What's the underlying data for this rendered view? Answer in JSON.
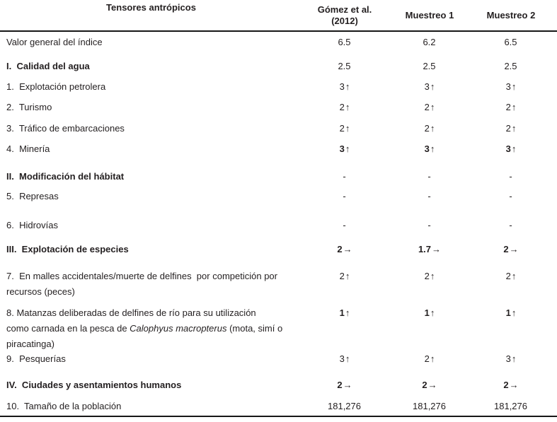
{
  "page": {
    "background": "#ffffff",
    "text_color": "#231f20",
    "rule_color": "#161616"
  },
  "chart_data": {
    "type": "table",
    "title": "Tensores antrópicos",
    "columns": [
      "Tensores antrópicos",
      "Gómez et al. (2012)",
      "Muestreo 1",
      "Muestreo 2"
    ],
    "rows": [
      {
        "label": "Valor general del índice",
        "values": [
          "6.5",
          "6.2",
          "6.5"
        ]
      },
      {
        "label": "I. Calidad del agua",
        "values": [
          "2.5",
          "2.5",
          "2.5"
        ]
      },
      {
        "label": "1. Explotación petrolera",
        "values": [
          "3↑",
          "3↑",
          "3↑"
        ]
      },
      {
        "label": "2. Turismo",
        "values": [
          "2↑",
          "2↑",
          "2↑"
        ]
      },
      {
        "label": "3. Tráfico de embarcaciones",
        "values": [
          "2↑",
          "2↑",
          "2↑"
        ]
      },
      {
        "label": "4. Minería",
        "values": [
          "3↑",
          "3↑",
          "3↑"
        ]
      },
      {
        "label": "II. Modificación del hábitat",
        "values": [
          "-",
          "-",
          "-"
        ]
      },
      {
        "label": "5. Represas",
        "values": [
          "-",
          "-",
          "-"
        ]
      },
      {
        "label": "6. Hidrovías",
        "values": [
          "-",
          "-",
          "-"
        ]
      },
      {
        "label": "III. Explotación de especies",
        "values": [
          "2→",
          "1.7→",
          "2→"
        ]
      },
      {
        "label": "7. En malles accidentales/muerte de delfines por competición por recursos (peces)",
        "values": [
          "2↑",
          "2↑",
          "2↑"
        ]
      },
      {
        "label": "8. Matanzas deliberadas de delfines de río para su utilización como carnada en la pesca de Calophyus macropterus (mota, simí o piracatinga)",
        "values": [
          "1↑",
          "1↑",
          "1↑"
        ]
      },
      {
        "label": "9. Pesquerías",
        "values": [
          "3↑",
          "2↑",
          "3↑"
        ]
      },
      {
        "label": "IV. Ciudades y asentamientos humanos",
        "values": [
          "2→",
          "2→",
          "2→"
        ]
      },
      {
        "label": "10. Tamaño de la población",
        "values": [
          "181,276",
          "181,276",
          "181,276"
        ]
      }
    ]
  },
  "table": {
    "header": {
      "col0": "Tensores antrópicos",
      "col1_line1": "Gómez et al.",
      "col1_line2": "(2012)",
      "col2": "Muestreo 1",
      "col3": "Muestreo 2"
    },
    "rows": [
      {
        "label": "Valor general del índice",
        "values": [
          {
            "n": "6.5",
            "a": ""
          },
          {
            "n": "6.2",
            "a": ""
          },
          {
            "n": "6.5",
            "a": ""
          }
        ]
      },
      {
        "label": "I.  Calidad del agua",
        "values": [
          {
            "n": "2.5",
            "a": ""
          },
          {
            "n": "2.5",
            "a": ""
          },
          {
            "n": "2.5",
            "a": ""
          }
        ]
      },
      {
        "label": "1.  Explotación petrolera",
        "values": [
          {
            "n": "3",
            "a": "↑"
          },
          {
            "n": "3",
            "a": "↑"
          },
          {
            "n": "3",
            "a": "↑"
          }
        ]
      },
      {
        "label": "2.  Turismo",
        "values": [
          {
            "n": "2",
            "a": "↑"
          },
          {
            "n": "2",
            "a": "↑"
          },
          {
            "n": "2",
            "a": "↑"
          }
        ]
      },
      {
        "label": "3.  Tráfico de embarcaciones",
        "values": [
          {
            "n": "2",
            "a": "↑"
          },
          {
            "n": "2",
            "a": "↑"
          },
          {
            "n": "2",
            "a": "↑"
          }
        ]
      },
      {
        "label": "4.  Minería",
        "values": [
          {
            "n": "3",
            "a": "↑"
          },
          {
            "n": "3",
            "a": "↑"
          },
          {
            "n": "3",
            "a": "↑"
          }
        ]
      },
      {
        "label": "II.  Modificación del hábitat",
        "values": [
          {
            "n": "-",
            "a": ""
          },
          {
            "n": "-",
            "a": ""
          },
          {
            "n": "-",
            "a": ""
          }
        ]
      },
      {
        "label": "5.  Represas",
        "values": [
          {
            "n": "-",
            "a": ""
          },
          {
            "n": "-",
            "a": ""
          },
          {
            "n": "-",
            "a": ""
          }
        ]
      },
      {
        "label": "6.  Hidrovías",
        "values": [
          {
            "n": "-",
            "a": ""
          },
          {
            "n": "-",
            "a": ""
          },
          {
            "n": "-",
            "a": ""
          }
        ]
      },
      {
        "label": "III.  Explotación de especies",
        "values": [
          {
            "n": "2",
            "a": "→"
          },
          {
            "n": "1.7",
            "a": "→"
          },
          {
            "n": "2",
            "a": "→"
          }
        ]
      },
      {
        "label": "7.  En malles accidentales/muerte de delfines  por competición por\nrecursos (peces)",
        "values": [
          {
            "n": "2",
            "a": "↑"
          },
          {
            "n": "2",
            "a": "↑"
          },
          {
            "n": "2",
            "a": "↑"
          }
        ]
      },
      {
        "label_pre": "8. Matanzas deliberadas de delfines de río para su utilización\ncomo carnada en la pesca de ",
        "label_italic": "Calophyus macropterus",
        "label_post": " (mota, simí o\npiracatinga)",
        "values": [
          {
            "n": "1",
            "a": "↑"
          },
          {
            "n": "1",
            "a": "↑"
          },
          {
            "n": "1",
            "a": "↑"
          }
        ]
      },
      {
        "label": "9.  Pesquerías",
        "values": [
          {
            "n": "3",
            "a": "↑"
          },
          {
            "n": "2",
            "a": "↑"
          },
          {
            "n": "3",
            "a": "↑"
          }
        ]
      },
      {
        "label": "IV.  Ciudades y asentamientos humanos",
        "values": [
          {
            "n": "2",
            "a": "→"
          },
          {
            "n": "2",
            "a": "→"
          },
          {
            "n": "2",
            "a": "→"
          }
        ]
      },
      {
        "label": "10.  Tamaño de la población",
        "values": [
          {
            "n": "181,276",
            "a": ""
          },
          {
            "n": "181,276",
            "a": ""
          },
          {
            "n": "181,276",
            "a": ""
          }
        ]
      }
    ]
  }
}
